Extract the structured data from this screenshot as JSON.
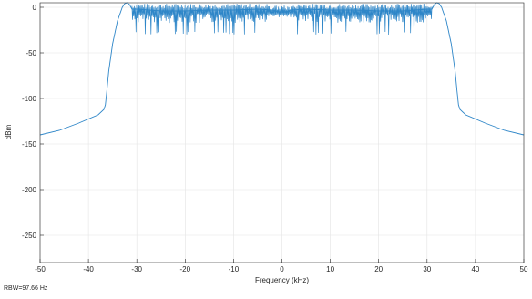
{
  "chart_data": {
    "type": "line",
    "title": "",
    "xlabel": "Frequency (kHz)",
    "ylabel": "dBm",
    "xlim": [
      -50,
      50
    ],
    "ylim": [
      -280,
      5
    ],
    "grid": true,
    "line_color": "#2e86c8",
    "x_ticks": [
      -50,
      -40,
      -30,
      -20,
      -10,
      0,
      10,
      20,
      30,
      40,
      50
    ],
    "y_ticks": [
      0,
      -50,
      -100,
      -150,
      -200,
      -250
    ],
    "footnote": "RBW=97.66 Hz",
    "series": [
      {
        "x": [
          -50,
          -46,
          -42,
          -38,
          -36.8,
          -36.5,
          -36.2,
          -35.8,
          -35,
          -34,
          -33,
          -32.5,
          -32,
          -31.5,
          -31,
          -30,
          -25,
          -20,
          -15,
          -10,
          -5,
          -2,
          0,
          2,
          5,
          10,
          15,
          20,
          25,
          30,
          31,
          31.5,
          32,
          32.5,
          33,
          34,
          35,
          35.8,
          36.2,
          36.5,
          36.8,
          38,
          42,
          46,
          50
        ],
        "y": [
          -140,
          -135,
          -127,
          -118,
          -112,
          -107,
          -92,
          -70,
          -40,
          -15,
          0,
          4,
          5,
          3,
          -2,
          -2,
          -4,
          -4,
          -3,
          -3,
          -2,
          -3,
          -6,
          -3,
          -2,
          -3,
          -3,
          -4,
          -4,
          -2,
          -2,
          3,
          5,
          4,
          0,
          -15,
          -40,
          -70,
          -92,
          -107,
          -112,
          -118,
          -127,
          -135,
          -140
        ],
        "ripple": {
          "band": [
            -31,
            31
          ],
          "mean": -5,
          "min_dips": -28
        }
      }
    ]
  }
}
